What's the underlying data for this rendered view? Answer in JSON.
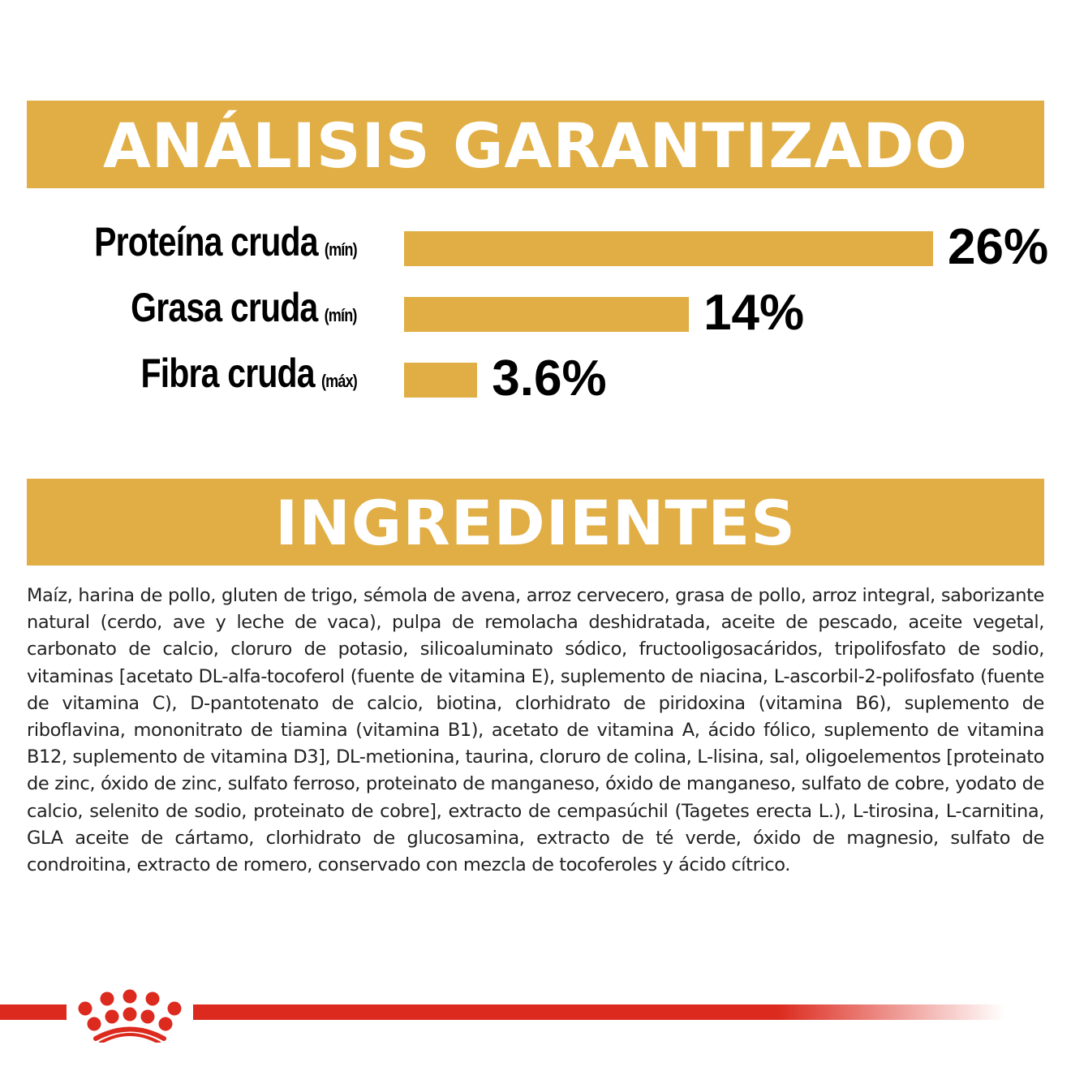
{
  "analysis": {
    "title": "ANÁLISIS GARANTIZADO"
  },
  "chart_data": {
    "type": "bar",
    "orientation": "horizontal",
    "categories": [
      "Proteína cruda",
      "Grasa cruda",
      "Fibra cruda"
    ],
    "qualifiers": [
      "(mín)",
      "(mín)",
      "(máx)"
    ],
    "values": [
      26,
      14,
      3.6
    ],
    "value_labels": [
      "26%",
      "14%",
      "3.6%"
    ],
    "unit": "%",
    "bar_color": "#e0ae44",
    "grid": false
  },
  "ingredients": {
    "title": "INGREDIENTES",
    "text": "Maíz, harina de pollo, gluten de trigo, sémola de avena, arroz cervecero, grasa de pollo, arroz integral, saborizante natural (cerdo, ave y leche de vaca), pulpa de remolacha deshidratada, aceite de pescado, aceite vegetal, carbonato de calcio, cloruro de potasio, silicoaluminato sódico, fructooligosacáridos, tripolifosfato de sodio, vitaminas [acetato DL-alfa-tocoferol (fuente de vitamina E), suplemento de niacina, L-ascorbil-2-polifosfato (fuente de vitamina C), D-pantotenato de calcio, biotina, clorhidrato de piridoxina (vitamina B6), suplemento de riboflavina, mononitrato de tiamina (vitamina B1), acetato de vitamina A, ácido fólico, suplemento de vitamina B12, suplemento de vitamina D3], DL-metionina, taurina, cloruro de colina, L-lisina, sal, oligoelementos [proteinato de zinc, óxido de zinc, sulfato ferroso, proteinato de manganeso, óxido de manganeso, sulfato de cobre, yodato de calcio, selenito de sodio, proteinato de cobre], extracto de cempasúchil (Tagetes erecta L.), L-tirosina, L-carnitina, GLA aceite de cártamo, clorhidrato de glucosamina, extracto de té verde, óxido de magnesio, sulfato de condroitina, extracto de romero, conservado con mezcla de tocoferoles y ácido cítrico."
  },
  "brand": {
    "logo": "crown-icon",
    "color": "#dc2a1e"
  }
}
